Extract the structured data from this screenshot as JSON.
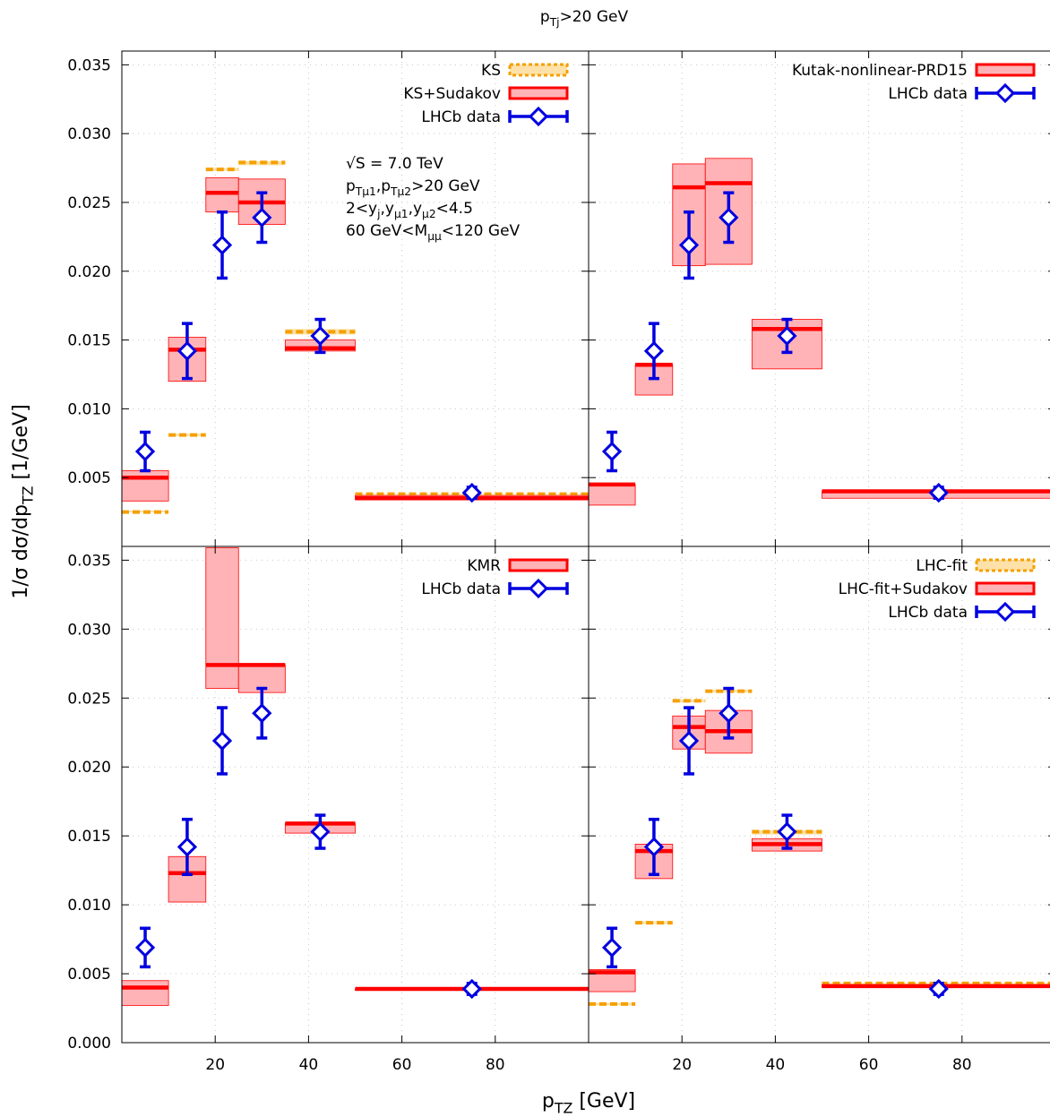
{
  "figure": {
    "suptitle": "p_Tj>20 GeV",
    "xlabel": "p_TZ [GeV]",
    "ylabel": "1/σ dσ/dp_TZ [1/GeV]"
  },
  "chart_data": [
    {
      "type": "bar",
      "panel": "top-left",
      "xlim": [
        0,
        100
      ],
      "ylim": [
        0,
        0.036
      ],
      "xticks": [
        20,
        40,
        60,
        80
      ],
      "yticks": [
        0.005,
        0.01,
        0.015,
        0.02,
        0.025,
        0.03,
        0.035
      ],
      "grid": true,
      "legend_position": "top-right",
      "annotation": [
        "√S = 7.0 TeV",
        "p_Tμ1,p_Tμ2>20 GeV",
        "2<y_j,y_μ1,y_μ2<4.5",
        "60 GeV<M_μμ<120 GeV"
      ],
      "bins": [
        [
          0,
          10
        ],
        [
          10,
          18
        ],
        [
          18,
          25
        ],
        [
          25,
          35
        ],
        [
          35,
          50
        ],
        [
          50,
          100
        ]
      ],
      "series": [
        {
          "name": "KS",
          "style": "dashed-orange",
          "central": [
            0.0025,
            0.0081,
            0.0274,
            0.0279,
            0.0156,
            0.0038
          ],
          "low": [
            0.0025,
            0.008,
            0.0273,
            0.0277,
            0.0154,
            0.0037
          ],
          "high": [
            0.0026,
            0.0082,
            0.0275,
            0.028,
            0.0158,
            0.0038
          ]
        },
        {
          "name": "KS+Sudakov",
          "style": "red-band",
          "central": [
            0.005,
            0.0143,
            0.0257,
            0.025,
            0.0144,
            0.0035
          ],
          "low": [
            0.0033,
            0.012,
            0.0243,
            0.0234,
            0.0142,
            0.0034
          ],
          "high": [
            0.0055,
            0.0152,
            0.0268,
            0.0267,
            0.015,
            0.0037
          ]
        },
        {
          "name": "LHCb data",
          "style": "blue-points",
          "x": [
            5,
            14,
            21.5,
            30,
            42.5,
            75
          ],
          "y": [
            0.0069,
            0.0142,
            0.0219,
            0.0239,
            0.0153,
            0.0039
          ],
          "err": [
            0.0014,
            0.002,
            0.0024,
            0.0018,
            0.0012,
            0.0004
          ]
        }
      ]
    },
    {
      "type": "bar",
      "panel": "top-right",
      "xlim": [
        0,
        100
      ],
      "ylim": [
        0,
        0.036
      ],
      "grid": true,
      "legend_position": "top-right",
      "bins": [
        [
          0,
          10
        ],
        [
          10,
          18
        ],
        [
          18,
          25
        ],
        [
          25,
          35
        ],
        [
          35,
          50
        ],
        [
          50,
          100
        ]
      ],
      "series": [
        {
          "name": "Kutak-nonlinear-PRD15",
          "style": "red-band",
          "central": [
            0.0045,
            0.0132,
            0.0261,
            0.0264,
            0.0158,
            0.004
          ],
          "low": [
            0.003,
            0.011,
            0.0204,
            0.0205,
            0.0129,
            0.0035
          ],
          "high": [
            0.0045,
            0.0132,
            0.0278,
            0.0282,
            0.0165,
            0.004
          ]
        },
        {
          "name": "LHCb data",
          "style": "blue-points",
          "x": [
            5,
            14,
            21.5,
            30,
            42.5,
            75
          ],
          "y": [
            0.0069,
            0.0142,
            0.0219,
            0.0239,
            0.0153,
            0.0039
          ],
          "err": [
            0.0014,
            0.002,
            0.0024,
            0.0018,
            0.0012,
            0.0004
          ]
        }
      ]
    },
    {
      "type": "bar",
      "panel": "bottom-left",
      "xlim": [
        0,
        100
      ],
      "ylim": [
        0,
        0.036
      ],
      "grid": true,
      "legend_position": "top-right",
      "bins": [
        [
          0,
          10
        ],
        [
          10,
          18
        ],
        [
          18,
          25
        ],
        [
          25,
          35
        ],
        [
          35,
          50
        ],
        [
          50,
          100
        ]
      ],
      "series": [
        {
          "name": "KMR",
          "style": "red-band",
          "central": [
            0.004,
            0.0123,
            0.0274,
            0.0274,
            0.0159,
            0.0039
          ],
          "low": [
            0.0027,
            0.0102,
            0.0257,
            0.0254,
            0.0152,
            0.0038
          ],
          "high": [
            0.0045,
            0.0135,
            0.0359,
            0.0274,
            0.0159,
            0.0039
          ]
        },
        {
          "name": "LHCb data",
          "style": "blue-points",
          "x": [
            5,
            14,
            21.5,
            30,
            42.5,
            75
          ],
          "y": [
            0.0069,
            0.0142,
            0.0219,
            0.0239,
            0.0153,
            0.0039
          ],
          "err": [
            0.0014,
            0.002,
            0.0024,
            0.0018,
            0.0012,
            0.0004
          ]
        }
      ]
    },
    {
      "type": "bar",
      "panel": "bottom-right",
      "xlim": [
        0,
        100
      ],
      "ylim": [
        0,
        0.036
      ],
      "grid": true,
      "legend_position": "top-right",
      "bins": [
        [
          0,
          10
        ],
        [
          10,
          18
        ],
        [
          18,
          25
        ],
        [
          25,
          35
        ],
        [
          35,
          50
        ],
        [
          50,
          100
        ]
      ],
      "series": [
        {
          "name": "LHC-fit",
          "style": "dashed-orange",
          "central": [
            0.0028,
            0.0087,
            0.0248,
            0.0255,
            0.0153,
            0.0043
          ],
          "low": [
            0.0027,
            0.0086,
            0.0247,
            0.0254,
            0.0151,
            0.0042
          ],
          "high": [
            0.0029,
            0.0088,
            0.0249,
            0.0256,
            0.0154,
            0.0043
          ]
        },
        {
          "name": "LHC-fit+Sudakov",
          "style": "red-band",
          "central": [
            0.0051,
            0.0139,
            0.0229,
            0.0226,
            0.0144,
            0.0041
          ],
          "low": [
            0.0037,
            0.0119,
            0.0213,
            0.021,
            0.0139,
            0.004
          ],
          "high": [
            0.0053,
            0.0144,
            0.0237,
            0.0241,
            0.0148,
            0.0042
          ]
        },
        {
          "name": "LHCb data",
          "style": "blue-points",
          "x": [
            5,
            14,
            21.5,
            30,
            42.5,
            75
          ],
          "y": [
            0.0069,
            0.0142,
            0.0219,
            0.0239,
            0.0153,
            0.0039
          ],
          "err": [
            0.0014,
            0.002,
            0.0024,
            0.0018,
            0.0012,
            0.0004
          ]
        }
      ]
    }
  ],
  "colors": {
    "band_fill": "#ffb3b6",
    "central_line": "#ff0000",
    "dashed": "#f5a000",
    "dashed_fill": "#fde1a8",
    "data": "#0000e0",
    "grid": "#c8c8c8"
  }
}
